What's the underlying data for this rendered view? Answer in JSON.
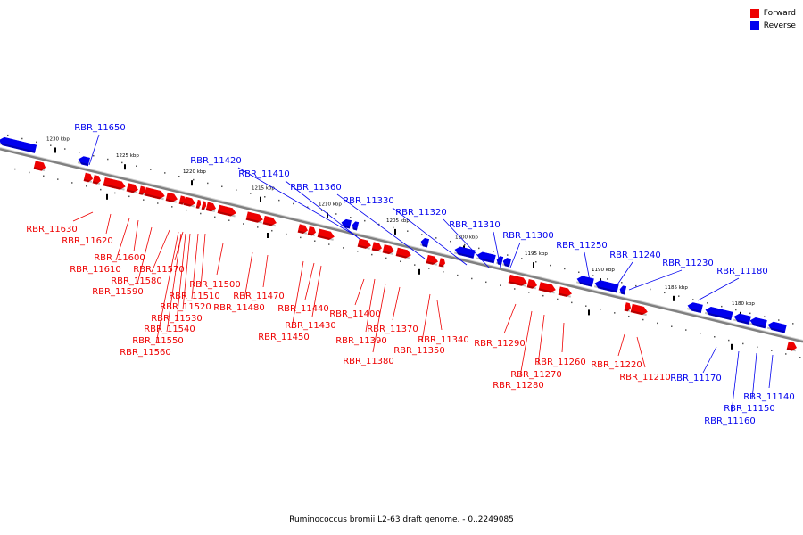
{
  "caption": "Ruminococcus bromii L2-63 draft genome. - 0..2249085",
  "legend": {
    "forward": {
      "label": "Forward",
      "color": "#ee0000"
    },
    "reverse": {
      "label": "Reverse",
      "color": "#0000ee"
    }
  },
  "scale_labels": [
    "1180 kbp",
    "1185 kbp",
    "1190 kbp",
    "1195 kbp",
    "1200 kbp",
    "1205 kbp",
    "1210 kbp",
    "1215 kbp",
    "1220 kbp",
    "1225 kbp",
    "1230 kbp"
  ],
  "genes_forward": [
    "RBR_11630",
    "RBR_11620",
    "RBR_11610",
    "RBR_11600",
    "RBR_11590",
    "RBR_11580",
    "RBR_11570",
    "RBR_11560",
    "RBR_11550",
    "RBR_11540",
    "RBR_11530",
    "RBR_11520",
    "RBR_11510",
    "RBR_11500",
    "RBR_11480",
    "RBR_11470",
    "RBR_11450",
    "RBR_11440",
    "RBR_11430",
    "RBR_11400",
    "RBR_11390",
    "RBR_11380",
    "RBR_11370",
    "RBR_11350",
    "RBR_11340",
    "RBR_11290",
    "RBR_11280",
    "RBR_11270",
    "RBR_11260",
    "RBR_11220",
    "RBR_11210"
  ],
  "genes_reverse": [
    "RBR_11650",
    "RBR_11420",
    "RBR_11410",
    "RBR_11360",
    "RBR_11330",
    "RBR_11320",
    "RBR_11310",
    "RBR_11300",
    "RBR_11250",
    "RBR_11240",
    "RBR_11230",
    "RBR_11180",
    "RBR_11170",
    "RBR_11160",
    "RBR_11150",
    "RBR_11140"
  ]
}
